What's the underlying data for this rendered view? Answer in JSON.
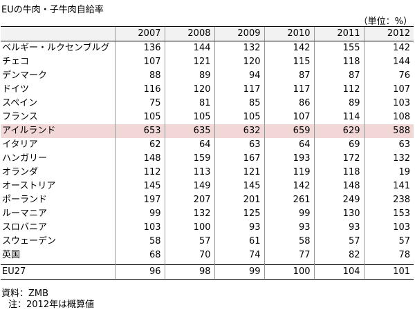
{
  "title": "EUの牛肉・子牛肉自給率",
  "unit": "（単位：%）",
  "columns": [
    "2007",
    "2008",
    "2009",
    "2010",
    "2011",
    "2012"
  ],
  "rows": [
    {
      "name": "ベルギー・ルクセンブルグ",
      "values": [
        "136",
        "144",
        "132",
        "142",
        "155",
        "142"
      ]
    },
    {
      "name": "チェコ",
      "values": [
        "107",
        "121",
        "120",
        "115",
        "118",
        "144"
      ]
    },
    {
      "name": "デンマーク",
      "values": [
        "88",
        "89",
        "94",
        "87",
        "87",
        "76"
      ]
    },
    {
      "name": "ドイツ",
      "values": [
        "116",
        "120",
        "117",
        "117",
        "112",
        "107"
      ]
    },
    {
      "name": "スペイン",
      "values": [
        "75",
        "81",
        "85",
        "86",
        "89",
        "103"
      ]
    },
    {
      "name": "フランス",
      "values": [
        "105",
        "105",
        "105",
        "107",
        "114",
        "108"
      ]
    },
    {
      "name": "アイルランド",
      "values": [
        "653",
        "635",
        "632",
        "659",
        "629",
        "588"
      ]
    },
    {
      "name": "イタリア",
      "values": [
        "62",
        "64",
        "63",
        "64",
        "69",
        "63"
      ]
    },
    {
      "name": "ハンガリー",
      "values": [
        "148",
        "159",
        "167",
        "193",
        "172",
        "132"
      ]
    },
    {
      "name": "オランダ",
      "values": [
        "112",
        "113",
        "121",
        "119",
        "118",
        "19"
      ]
    },
    {
      "name": "オーストリア",
      "values": [
        "145",
        "149",
        "145",
        "142",
        "148",
        "141"
      ]
    },
    {
      "name": "ポーランド",
      "values": [
        "197",
        "207",
        "201",
        "261",
        "249",
        "238"
      ]
    },
    {
      "name": "ルーマニア",
      "values": [
        "99",
        "132",
        "125",
        "99",
        "130",
        "153"
      ]
    },
    {
      "name": "スロバニア",
      "values": [
        "103",
        "100",
        "93",
        "93",
        "93",
        "103"
      ]
    },
    {
      "name": "スウェーデン",
      "values": [
        "58",
        "57",
        "61",
        "58",
        "57",
        "57"
      ]
    },
    {
      "name": "英国",
      "values": [
        "68",
        "70",
        "74",
        "77",
        "82",
        "78"
      ]
    }
  ],
  "total": {
    "name": "EU27",
    "values": [
      "96",
      "98",
      "99",
      "100",
      "104",
      "101"
    ]
  },
  "source": "資料：ZMB",
  "note": "注：2012年は概算値",
  "highlight_color": "#f2d7d7"
}
